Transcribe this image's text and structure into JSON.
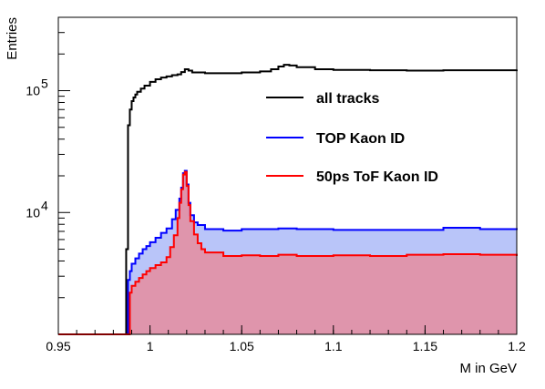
{
  "chart_data": {
    "type": "line",
    "step": true,
    "xlabel": "M in GeV",
    "ylabel": "Entries",
    "xlim": [
      0.95,
      1.2
    ],
    "ylim": [
      1000,
      400000
    ],
    "y_scale": "log",
    "x_ticks": [
      0.95,
      1.0,
      1.05,
      1.1,
      1.15,
      1.2
    ],
    "x_tick_labels": [
      "0.95",
      "1",
      "1.05",
      "1.1",
      "1.15",
      "1.2"
    ],
    "y_ticks": [
      10000,
      100000
    ],
    "y_tick_labels": [
      {
        "base": "10",
        "exp": "4"
      },
      {
        "base": "10",
        "exp": "5"
      }
    ],
    "legend_position": "center-right",
    "grid": false,
    "series": [
      {
        "name": "all tracks",
        "color": "#000000",
        "points": [
          [
            0.95,
            1000
          ],
          [
            0.986,
            1000
          ],
          [
            0.987,
            5000
          ],
          [
            0.988,
            52000
          ],
          [
            0.989,
            70000
          ],
          [
            0.99,
            82000
          ],
          [
            0.991,
            88000
          ],
          [
            0.992,
            93000
          ],
          [
            0.993,
            98000
          ],
          [
            0.995,
            104000
          ],
          [
            0.997,
            110000
          ],
          [
            1.0,
            118000
          ],
          [
            1.003,
            124000
          ],
          [
            1.006,
            128000
          ],
          [
            1.009,
            131000
          ],
          [
            1.012,
            134000
          ],
          [
            1.015,
            136000
          ],
          [
            1.017,
            142000
          ],
          [
            1.019,
            150000
          ],
          [
            1.021,
            146000
          ],
          [
            1.023,
            141000
          ],
          [
            1.03,
            139000
          ],
          [
            1.04,
            139000
          ],
          [
            1.05,
            141000
          ],
          [
            1.06,
            144000
          ],
          [
            1.066,
            150000
          ],
          [
            1.07,
            158000
          ],
          [
            1.073,
            163000
          ],
          [
            1.076,
            161000
          ],
          [
            1.08,
            156000
          ],
          [
            1.09,
            150000
          ],
          [
            1.1,
            148000
          ],
          [
            1.12,
            147000
          ],
          [
            1.14,
            146000
          ],
          [
            1.16,
            147000
          ],
          [
            1.18,
            147000
          ],
          [
            1.2,
            149000
          ]
        ]
      },
      {
        "name": "TOP Kaon ID",
        "color": "#0000ff",
        "points": [
          [
            0.95,
            1000
          ],
          [
            0.987,
            1000
          ],
          [
            0.988,
            2800
          ],
          [
            0.989,
            3300
          ],
          [
            0.99,
            3800
          ],
          [
            0.992,
            4200
          ],
          [
            0.994,
            4600
          ],
          [
            0.996,
            5000
          ],
          [
            0.998,
            5300
          ],
          [
            1.0,
            5700
          ],
          [
            1.003,
            6200
          ],
          [
            1.006,
            6800
          ],
          [
            1.009,
            7400
          ],
          [
            1.012,
            8800
          ],
          [
            1.014,
            10500
          ],
          [
            1.016,
            13000
          ],
          [
            1.017,
            16000
          ],
          [
            1.018,
            21000
          ],
          [
            1.019,
            22000
          ],
          [
            1.02,
            17000
          ],
          [
            1.021,
            12000
          ],
          [
            1.022,
            9500
          ],
          [
            1.024,
            8300
          ],
          [
            1.026,
            7900
          ],
          [
            1.03,
            7300
          ],
          [
            1.04,
            7100
          ],
          [
            1.05,
            7300
          ],
          [
            1.06,
            7300
          ],
          [
            1.07,
            7400
          ],
          [
            1.08,
            7300
          ],
          [
            1.1,
            7200
          ],
          [
            1.12,
            7200
          ],
          [
            1.14,
            7200
          ],
          [
            1.16,
            7500
          ],
          [
            1.18,
            7300
          ],
          [
            1.2,
            7200
          ]
        ]
      },
      {
        "name": "50ps ToF Kaon ID",
        "color": "#ff0000",
        "points": [
          [
            0.95,
            1000
          ],
          [
            0.988,
            1000
          ],
          [
            0.989,
            2200
          ],
          [
            0.99,
            2500
          ],
          [
            0.992,
            2700
          ],
          [
            0.994,
            2900
          ],
          [
            0.996,
            3100
          ],
          [
            0.998,
            3300
          ],
          [
            1.0,
            3500
          ],
          [
            1.003,
            3700
          ],
          [
            1.006,
            3900
          ],
          [
            1.009,
            4300
          ],
          [
            1.011,
            5200
          ],
          [
            1.013,
            6500
          ],
          [
            1.015,
            9000
          ],
          [
            1.016,
            12000
          ],
          [
            1.017,
            15500
          ],
          [
            1.018,
            20500
          ],
          [
            1.019,
            21500
          ],
          [
            1.02,
            16500
          ],
          [
            1.021,
            11500
          ],
          [
            1.022,
            8500
          ],
          [
            1.024,
            6600
          ],
          [
            1.026,
            5600
          ],
          [
            1.028,
            5000
          ],
          [
            1.03,
            4700
          ],
          [
            1.04,
            4400
          ],
          [
            1.05,
            4450
          ],
          [
            1.06,
            4400
          ],
          [
            1.07,
            4500
          ],
          [
            1.08,
            4400
          ],
          [
            1.1,
            4450
          ],
          [
            1.12,
            4400
          ],
          [
            1.14,
            4500
          ],
          [
            1.16,
            4550
          ],
          [
            1.18,
            4500
          ],
          [
            1.2,
            4400
          ]
        ]
      }
    ]
  }
}
